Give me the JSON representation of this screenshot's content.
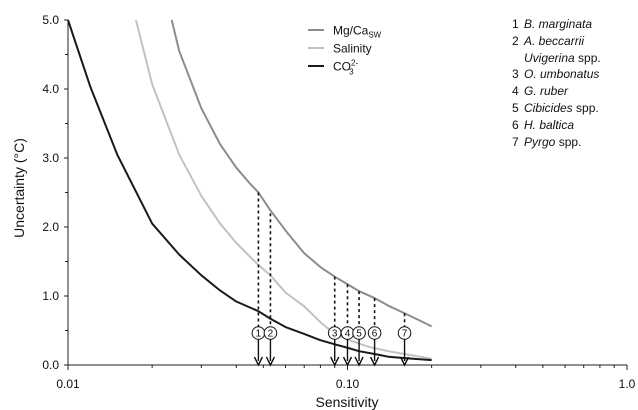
{
  "chart_data": {
    "type": "line",
    "xlabel": "Sensitivity",
    "ylabel": "Uncertainty (°C)",
    "xscale": "log",
    "xlim": [
      0.01,
      1.0
    ],
    "ylim": [
      0,
      5.0
    ],
    "x_ticks": [
      0.01,
      0.1,
      1.0
    ],
    "x_tick_labels": [
      "0.01",
      "0.10",
      "1.0"
    ],
    "y_ticks": [
      0,
      1,
      2,
      3,
      4,
      5
    ],
    "y_tick_labels": [
      "0.0",
      "1.0",
      "2.0",
      "3.0",
      "4.0",
      "5.0"
    ],
    "grid": false,
    "legend": "top-center",
    "series": [
      {
        "name_main": "Mg/Ca",
        "name_sub": "SW",
        "color": "#8c8c8c",
        "points": [
          [
            0.0235,
            5.0
          ],
          [
            0.025,
            4.55
          ],
          [
            0.03,
            3.72
          ],
          [
            0.035,
            3.2
          ],
          [
            0.04,
            2.86
          ],
          [
            0.045,
            2.62
          ],
          [
            0.048,
            2.5
          ],
          [
            0.053,
            2.24
          ],
          [
            0.06,
            1.95
          ],
          [
            0.07,
            1.62
          ],
          [
            0.08,
            1.42
          ],
          [
            0.09,
            1.28
          ],
          [
            0.1,
            1.17
          ],
          [
            0.11,
            1.07
          ],
          [
            0.125,
            0.97
          ],
          [
            0.14,
            0.86
          ],
          [
            0.16,
            0.75
          ],
          [
            0.18,
            0.65
          ],
          [
            0.2,
            0.56
          ]
        ]
      },
      {
        "name_main": "Salinity",
        "name_sub": "",
        "color": "#c2c2c2",
        "points": [
          [
            0.0175,
            5.0
          ],
          [
            0.02,
            4.07
          ],
          [
            0.025,
            3.05
          ],
          [
            0.03,
            2.45
          ],
          [
            0.035,
            2.05
          ],
          [
            0.04,
            1.77
          ],
          [
            0.045,
            1.56
          ],
          [
            0.048,
            1.45
          ],
          [
            0.053,
            1.3
          ],
          [
            0.06,
            1.05
          ],
          [
            0.07,
            0.85
          ],
          [
            0.08,
            0.62
          ],
          [
            0.09,
            0.45
          ],
          [
            0.1,
            0.37
          ],
          [
            0.11,
            0.31
          ],
          [
            0.12,
            0.26
          ],
          [
            0.14,
            0.2
          ],
          [
            0.16,
            0.16
          ],
          [
            0.2,
            0.09
          ]
        ]
      },
      {
        "name_main": "CO",
        "name_sub": "3",
        "name_sup": "2-",
        "color": "#1a1a1a",
        "points": [
          [
            0.01,
            5.0
          ],
          [
            0.012,
            4.04
          ],
          [
            0.015,
            3.05
          ],
          [
            0.02,
            2.05
          ],
          [
            0.025,
            1.6
          ],
          [
            0.03,
            1.3
          ],
          [
            0.035,
            1.08
          ],
          [
            0.04,
            0.92
          ],
          [
            0.048,
            0.78
          ],
          [
            0.053,
            0.67
          ],
          [
            0.06,
            0.55
          ],
          [
            0.07,
            0.45
          ],
          [
            0.08,
            0.36
          ],
          [
            0.09,
            0.3
          ],
          [
            0.1,
            0.25
          ],
          [
            0.11,
            0.2
          ],
          [
            0.125,
            0.16
          ],
          [
            0.14,
            0.12
          ],
          [
            0.16,
            0.1
          ],
          [
            0.2,
            0.07
          ]
        ]
      }
    ],
    "markers": [
      {
        "label": "1",
        "x": 0.048,
        "y_top": 2.5
      },
      {
        "label": "2",
        "x": 0.053,
        "y_top": 2.2
      },
      {
        "label": "3",
        "x": 0.09,
        "y_top": 1.28
      },
      {
        "label": "4",
        "x": 0.1,
        "y_top": 1.17
      },
      {
        "label": "5",
        "x": 0.11,
        "y_top": 1.07
      },
      {
        "label": "6",
        "x": 0.125,
        "y_top": 0.97
      },
      {
        "label": "7",
        "x": 0.16,
        "y_top": 0.75
      }
    ],
    "species": [
      {
        "num": "1",
        "name": "B. marginata",
        "suffix": ""
      },
      {
        "num": "2",
        "name": "A. beccarrii",
        "suffix": ""
      },
      {
        "num": "",
        "name": "Uvigerina",
        "suffix": " spp."
      },
      {
        "num": "3",
        "name": "O. umbonatus",
        "suffix": ""
      },
      {
        "num": "4",
        "name": "G. ruber",
        "suffix": ""
      },
      {
        "num": "5",
        "name": "Cibicides",
        "suffix": " spp."
      },
      {
        "num": "6",
        "name": "H. baltica",
        "suffix": ""
      },
      {
        "num": "7",
        "name": "Pyrgo",
        "suffix": " spp."
      }
    ]
  }
}
